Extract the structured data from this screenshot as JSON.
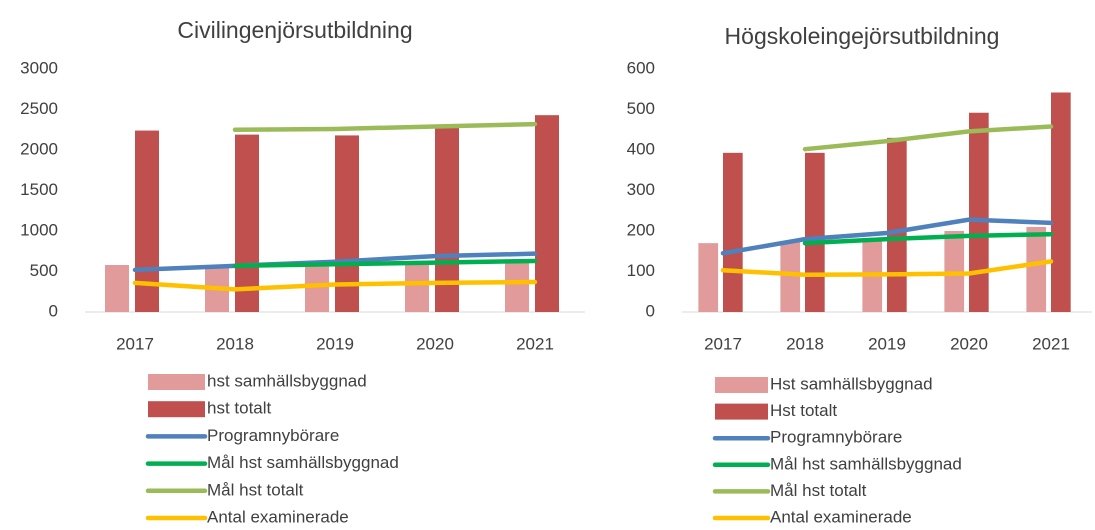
{
  "chart_data": [
    {
      "type": "bar",
      "title": "Civilingenjörsutbildning",
      "categories": [
        "2017",
        "2018",
        "2019",
        "2020",
        "2021"
      ],
      "ylim": [
        0,
        3000
      ],
      "yticks": [
        0,
        500,
        1000,
        1500,
        2000,
        2500,
        3000
      ],
      "grid": false,
      "legend": "bottom",
      "series": [
        {
          "name": "hst samhällsbyggnad",
          "type": "bar",
          "color": "#e09b9a",
          "values": [
            580,
            560,
            600,
            600,
            620
          ]
        },
        {
          "name": "hst totalt",
          "type": "bar",
          "color": "#c0504d",
          "values": [
            2240,
            2190,
            2180,
            2300,
            2430
          ]
        },
        {
          "name": "Programnybörare",
          "type": "line",
          "color": "#4f81bd",
          "values": [
            520,
            570,
            620,
            690,
            720
          ]
        },
        {
          "name": "Mål hst samhällsbyggnad",
          "type": "line",
          "color": "#00b050",
          "values": [
            null,
            570,
            590,
            610,
            630
          ]
        },
        {
          "name": "Mål hst totalt",
          "type": "line",
          "color": "#9bbb59",
          "values": [
            null,
            2250,
            2260,
            2290,
            2320
          ]
        },
        {
          "name": "Antal examinerade",
          "type": "line",
          "color": "#ffc000",
          "values": [
            360,
            280,
            340,
            360,
            370
          ]
        }
      ]
    },
    {
      "type": "bar",
      "title": "Högskoleingejörsutbildning",
      "categories": [
        "2017",
        "2018",
        "2019",
        "2020",
        "2021"
      ],
      "ylim": [
        0,
        600
      ],
      "yticks": [
        0,
        100,
        200,
        300,
        400,
        500,
        600
      ],
      "grid": false,
      "legend": "bottom",
      "series": [
        {
          "name": "Hst samhällsbyggnad",
          "type": "bar",
          "color": "#e09b9a",
          "values": [
            170,
            175,
            180,
            200,
            210
          ]
        },
        {
          "name": "Hst totalt",
          "type": "bar",
          "color": "#c0504d",
          "values": [
            393,
            393,
            430,
            492,
            542
          ]
        },
        {
          "name": "Programnybörare",
          "type": "line",
          "color": "#4f81bd",
          "values": [
            145,
            180,
            195,
            228,
            220
          ]
        },
        {
          "name": "Mål hst samhällsbyggnad",
          "type": "line",
          "color": "#00b050",
          "values": [
            null,
            170,
            180,
            188,
            192
          ]
        },
        {
          "name": "Mål hst totalt",
          "type": "line",
          "color": "#9bbb59",
          "values": [
            null,
            402,
            422,
            446,
            458
          ]
        },
        {
          "name": "Antal examinerade",
          "type": "line",
          "color": "#ffc000",
          "values": [
            103,
            92,
            93,
            95,
            125
          ]
        }
      ]
    }
  ]
}
